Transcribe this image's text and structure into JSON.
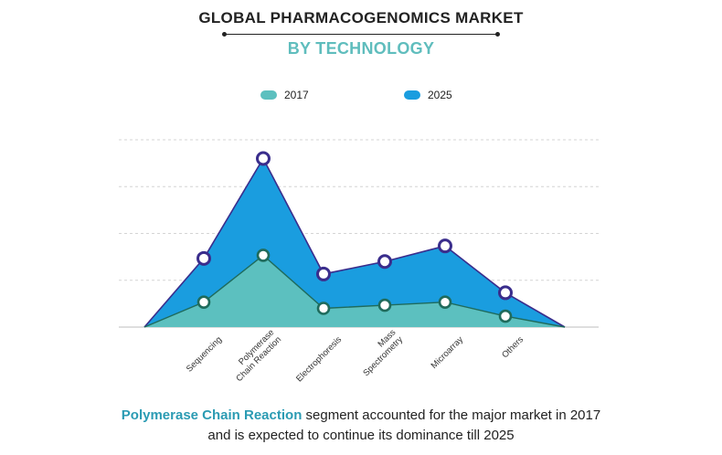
{
  "header": {
    "title": "GLOBAL PHARMACOGENOMICS MARKET",
    "subtitle": "BY TECHNOLOGY"
  },
  "colors": {
    "series_2017": "#5cc0bf",
    "series_2025": "#1a9ddf",
    "outline_2025": "#3a2d8c",
    "outline_2017": "#1f6b5c",
    "highlight_text": "#2b9bb3"
  },
  "chart_data": {
    "type": "area",
    "categories": [
      "Sequencing",
      "Polymerase Chain Reaction",
      "Electrophoresis",
      "Mass Spectrometry",
      "Microarray",
      "Others"
    ],
    "tick_labels": [
      [
        "Sequencing"
      ],
      [
        "Polymerase",
        "Chain Reaction"
      ],
      [
        "Electrophoresis"
      ],
      [
        "Mass",
        "Spectrometry"
      ],
      [
        "Microarray"
      ],
      [
        "Others"
      ]
    ],
    "series": [
      {
        "name": "2017",
        "values": [
          0.8,
          2.3,
          0.6,
          0.7,
          0.8,
          0.35
        ]
      },
      {
        "name": "2025",
        "values": [
          2.2,
          5.4,
          1.7,
          2.1,
          2.6,
          1.1
        ]
      }
    ],
    "ylim": [
      0,
      6
    ],
    "grid": true,
    "legend_position": "top-center"
  },
  "caption": {
    "highlight": "Polymerase Chain Reaction",
    "line1_rest": " segment accounted for the major market in 2017",
    "line2": "and is expected to continue its dominance till 2025"
  }
}
